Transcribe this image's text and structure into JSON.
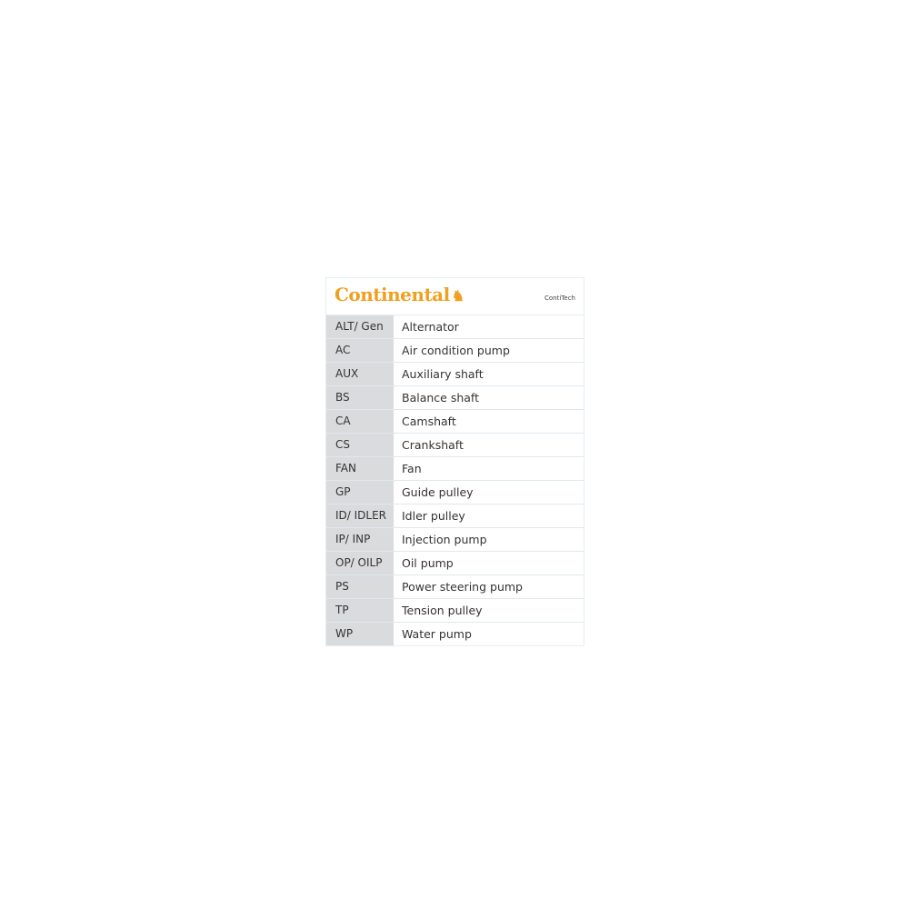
{
  "brand": {
    "logo_text": "Continental",
    "sub_brand": "ContiTech",
    "logo_color": "#f0a020"
  },
  "rows": [
    {
      "abbr": "ALT/ Gen",
      "desc": "Alternator"
    },
    {
      "abbr": "AC",
      "desc": "Air condition pump"
    },
    {
      "abbr": "AUX",
      "desc": "Auxiliary shaft"
    },
    {
      "abbr": "BS",
      "desc": "Balance shaft"
    },
    {
      "abbr": "CA",
      "desc": "Camshaft"
    },
    {
      "abbr": "CS",
      "desc": "Crankshaft"
    },
    {
      "abbr": "FAN",
      "desc": "Fan"
    },
    {
      "abbr": "GP",
      "desc": "Guide pulley"
    },
    {
      "abbr": "ID/ IDLER",
      "desc": "Idler pulley"
    },
    {
      "abbr": "IP/ INP",
      "desc": "Injection pump"
    },
    {
      "abbr": "OP/ OILP",
      "desc": "Oil pump"
    },
    {
      "abbr": "PS",
      "desc": "Power steering pump"
    },
    {
      "abbr": "TP",
      "desc": "Tension pulley"
    },
    {
      "abbr": "WP",
      "desc": "Water pump"
    }
  ]
}
